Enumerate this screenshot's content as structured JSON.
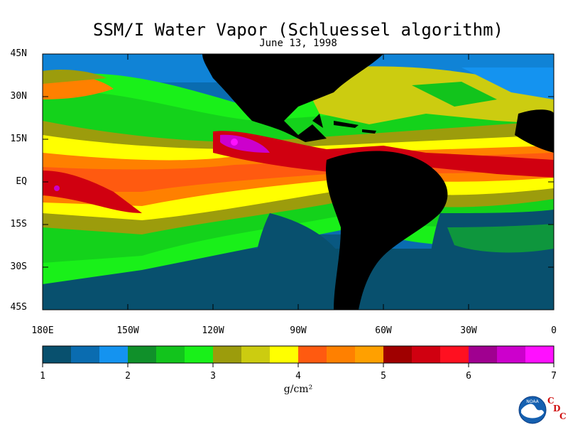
{
  "title": "SSM/I Water Vapor (Schluessel algorithm)",
  "date": "June 13, 1998",
  "lat_labels": [
    "45N",
    "30N",
    "15N",
    "EQ",
    "15S",
    "30S",
    "45S"
  ],
  "lon_labels": [
    "180E",
    "150W",
    "120W",
    "90W",
    "60W",
    "30W",
    "0"
  ],
  "colorbar": {
    "tick_labels": [
      "1",
      "2",
      "3",
      "4",
      "5",
      "6",
      "7"
    ],
    "unit": "g/cm²",
    "colors": [
      "#08506e",
      "#0a6cb0",
      "#1493f0",
      "#10902a",
      "#12c41c",
      "#19f019",
      "#9c9c0c",
      "#cccc10",
      "#ffff00",
      "#ff5a10",
      "#ff8000",
      "#ffa000",
      "#a00000",
      "#d00010",
      "#ff1020",
      "#a00090",
      "#cc00cc",
      "#ff10ff"
    ]
  },
  "logo": {
    "text": "NOAA",
    "icon": "noaa-logo-icon",
    "letters": [
      "C",
      "D",
      "C"
    ]
  }
}
